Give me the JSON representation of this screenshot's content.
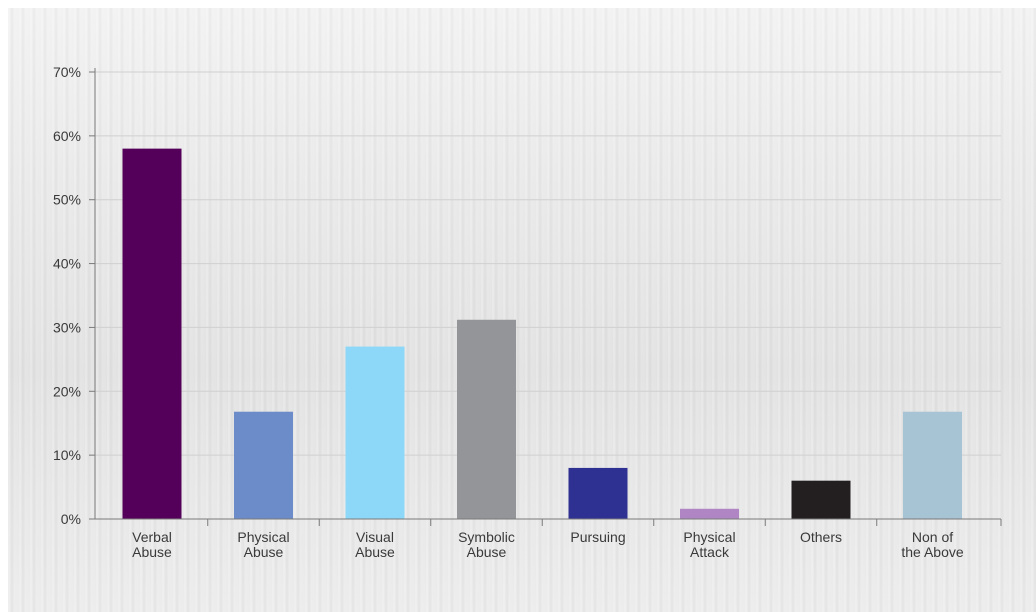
{
  "chart_data": {
    "type": "bar",
    "categories": [
      [
        "Verbal",
        "Abuse"
      ],
      [
        "Physical",
        "Abuse"
      ],
      [
        "Visual",
        "Abuse"
      ],
      [
        "Symbolic",
        "Abuse"
      ],
      [
        "Pursuing"
      ],
      [
        "Physical",
        "Attack"
      ],
      [
        "Others"
      ],
      [
        "Non of",
        "the Above"
      ]
    ],
    "values": [
      58,
      16.8,
      27,
      31.2,
      8,
      1.6,
      6,
      16.8
    ],
    "colors": [
      "#54005a",
      "#6b8cc8",
      "#8dd8f8",
      "#939598",
      "#2e3092",
      "#b085c4",
      "#231f20",
      "#a6c4d4"
    ],
    "ylim": [
      0,
      70
    ],
    "yticks": [
      0,
      10,
      20,
      30,
      40,
      50,
      60,
      70
    ],
    "ytick_labels": [
      "0%",
      "10%",
      "20%",
      "30%",
      "40%",
      "50%",
      "60%",
      "70%"
    ],
    "title": "",
    "xlabel": "",
    "ylabel": "",
    "grid": true,
    "legend": "none"
  }
}
